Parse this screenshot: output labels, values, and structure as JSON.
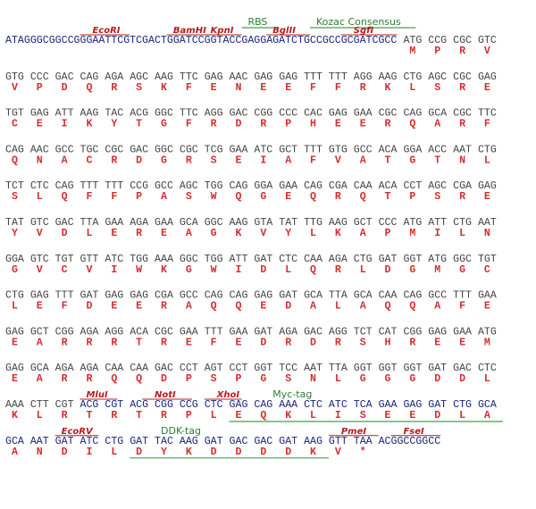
{
  "rows": [
    {
      "segments": [
        {
          "color": "#1a237e",
          "seq": "ATAGGGCGGCCGGGAATTCGTCGACTGGATCCGGTACCGAGGAGATCTGCCGCCGCGATCGCC"
        },
        {
          "color": "#444444",
          "codons": [
            "ATG",
            "CCG",
            "CGC",
            "GTC"
          ]
        }
      ],
      "aa": [
        "M",
        "P",
        "R",
        "V"
      ],
      "annotations": [
        {
          "label": "RBS",
          "color": "#2e7d32"
        },
        {
          "label": "Kozac Consensus",
          "color": "#2e7d32"
        },
        {
          "label": "EcoRI",
          "color": "#b71c1c"
        },
        {
          "label": "BamHI",
          "color": "#b71c1c"
        },
        {
          "label": "KpnI",
          "color": "#b71c1c"
        },
        {
          "label": "BglII",
          "color": "#b71c1c"
        },
        {
          "label": "SgfI",
          "color": "#b71c1c"
        }
      ]
    },
    {
      "segments": [
        {
          "color": "#444444",
          "codons": [
            "GTG",
            "CCC",
            "GAC",
            "CAG",
            "AGA",
            "AGC",
            "AAG",
            "TTC",
            "GAG",
            "AAC",
            "GAG",
            "GAG",
            "TTT",
            "TTT",
            "AGG",
            "AAG",
            "CTG",
            "AGC",
            "CGC",
            "GAG"
          ]
        }
      ],
      "aa": [
        "V",
        "P",
        "D",
        "Q",
        "R",
        "S",
        "K",
        "F",
        "E",
        "N",
        "E",
        "E",
        "F",
        "F",
        "R",
        "K",
        "L",
        "S",
        "R",
        "E"
      ]
    },
    {
      "segments": [
        {
          "color": "#444444",
          "codons": [
            "TGT",
            "GAG",
            "ATT",
            "AAG",
            "TAC",
            "ACG",
            "GGC",
            "TTC",
            "AGG",
            "GAC",
            "CGG",
            "CCC",
            "CAC",
            "GAG",
            "GAA",
            "CGC",
            "CAG",
            "GCA",
            "CGC",
            "TTC"
          ]
        }
      ],
      "aa": [
        "C",
        "E",
        "I",
        "K",
        "Y",
        "T",
        "G",
        "F",
        "R",
        "D",
        "R",
        "P",
        "H",
        "E",
        "E",
        "R",
        "Q",
        "A",
        "R",
        "F"
      ]
    },
    {
      "segments": [
        {
          "color": "#444444",
          "codons": [
            "CAG",
            "AAC",
            "GCC",
            "TGC",
            "CGC",
            "GAC",
            "GGC",
            "CGC",
            "TCG",
            "GAA",
            "ATC",
            "GCT",
            "TTT",
            "GTG",
            "GCC",
            "ACA",
            "GGA",
            "ACC",
            "AAT",
            "CTG"
          ]
        }
      ],
      "aa": [
        "Q",
        "N",
        "A",
        "C",
        "R",
        "D",
        "G",
        "R",
        "S",
        "E",
        "I",
        "A",
        "F",
        "V",
        "A",
        "T",
        "G",
        "T",
        "N",
        "L"
      ]
    },
    {
      "segments": [
        {
          "color": "#444444",
          "codons": [
            "TCT",
            "CTC",
            "CAG",
            "TTT",
            "TTT",
            "CCG",
            "GCC",
            "AGC",
            "TGG",
            "CAG",
            "GGA",
            "GAA",
            "CAG",
            "CGA",
            "CAA",
            "ACA",
            "CCT",
            "AGC",
            "CGA",
            "GAG"
          ]
        }
      ],
      "aa": [
        "S",
        "L",
        "Q",
        "F",
        "F",
        "P",
        "A",
        "S",
        "W",
        "Q",
        "G",
        "E",
        "Q",
        "R",
        "Q",
        "T",
        "P",
        "S",
        "R",
        "E"
      ]
    },
    {
      "segments": [
        {
          "color": "#444444",
          "codons": [
            "TAT",
            "GTC",
            "GAC",
            "TTA",
            "GAA",
            "AGA",
            "GAA",
            "GCA",
            "GGC",
            "AAG",
            "GTA",
            "TAT",
            "TTG",
            "AAG",
            "GCT",
            "CCC",
            "ATG",
            "ATT",
            "CTG",
            "AAT"
          ]
        }
      ],
      "aa": [
        "Y",
        "V",
        "D",
        "L",
        "E",
        "R",
        "E",
        "A",
        "G",
        "K",
        "V",
        "Y",
        "L",
        "K",
        "A",
        "P",
        "M",
        "I",
        "L",
        "N"
      ]
    },
    {
      "segments": [
        {
          "color": "#444444",
          "codons": [
            "GGA",
            "GTC",
            "TGT",
            "GTT",
            "ATC",
            "TGG",
            "AAA",
            "GGC",
            "TGG",
            "ATT",
            "GAT",
            "CTC",
            "CAA",
            "AGA",
            "CTG",
            "GAT",
            "GGT",
            "ATG",
            "GGC",
            "TGT"
          ]
        }
      ],
      "aa": [
        "G",
        "V",
        "C",
        "V",
        "I",
        "W",
        "K",
        "G",
        "W",
        "I",
        "D",
        "L",
        "Q",
        "R",
        "L",
        "D",
        "G",
        "M",
        "G",
        "C"
      ]
    },
    {
      "segments": [
        {
          "color": "#444444",
          "codons": [
            "CTG",
            "GAG",
            "TTT",
            "GAT",
            "GAG",
            "GAG",
            "CGA",
            "GCC",
            "CAG",
            "CAG",
            "GAG",
            "GAT",
            "GCA",
            "TTA",
            "GCA",
            "CAA",
            "CAG",
            "GCC",
            "TTT",
            "GAA"
          ]
        }
      ],
      "aa": [
        "L",
        "E",
        "F",
        "D",
        "E",
        "E",
        "R",
        "A",
        "Q",
        "Q",
        "E",
        "D",
        "A",
        "L",
        "A",
        "Q",
        "Q",
        "A",
        "F",
        "E"
      ]
    },
    {
      "segments": [
        {
          "color": "#444444",
          "codons": [
            "GAG",
            "GCT",
            "CGG",
            "AGA",
            "AGG",
            "ACA",
            "CGC",
            "GAA",
            "TTT",
            "GAA",
            "GAT",
            "AGA",
            "GAC",
            "AGG",
            "TCT",
            "CAT",
            "CGG",
            "GAG",
            "GAA",
            "ATG"
          ]
        }
      ],
      "aa": [
        "E",
        "A",
        "R",
        "R",
        "R",
        "T",
        "R",
        "E",
        "F",
        "E",
        "D",
        "R",
        "D",
        "R",
        "S",
        "H",
        "R",
        "E",
        "E",
        "M"
      ]
    },
    {
      "segments": [
        {
          "color": "#444444",
          "codons": [
            "GAG",
            "GCA",
            "AGA",
            "AGA",
            "CAA",
            "CAA",
            "GAC",
            "CCT",
            "AGT",
            "CCT",
            "GGT",
            "TCC",
            "AAT",
            "TTA",
            "GGT",
            "GGT",
            "GGT",
            "GAT",
            "GAC",
            "CTC"
          ]
        }
      ],
      "aa": [
        "E",
        "A",
        "R",
        "R",
        "Q",
        "Q",
        "D",
        "P",
        "S",
        "P",
        "G",
        "S",
        "N",
        "L",
        "G",
        "G",
        "G",
        "D",
        "D",
        "L"
      ]
    },
    {
      "segments": [
        {
          "color": "#444444",
          "codons": [
            "AAA",
            "CTT",
            "CGT"
          ]
        },
        {
          "color": "#1a237e",
          "codons": [
            "ACG",
            "CGT",
            "ACG",
            "CGG",
            "CCG",
            "CTC",
            "GAG",
            "CAG",
            "AAA",
            "CTC",
            "ATC",
            "TCA",
            "GAA",
            "GAG",
            "GAT",
            "CTG",
            "GCA"
          ]
        }
      ],
      "aa": [
        "K",
        "L",
        "R",
        "T",
        "R",
        "T",
        "R",
        "P",
        "L",
        "E",
        "Q",
        "K",
        "L",
        "I",
        "S",
        "E",
        "E",
        "D",
        "L",
        "A"
      ],
      "annotations": [
        {
          "label": "MluI",
          "color": "#b71c1c"
        },
        {
          "label": "NotI",
          "color": "#b71c1c"
        },
        {
          "label": "XhoI",
          "color": "#b71c1c"
        },
        {
          "label": "Myc-tag",
          "color": "#2e7d32"
        }
      ]
    },
    {
      "segments": [
        {
          "color": "#1a237e",
          "codons": [
            "GCA",
            "AAT",
            "GAT",
            "ATC",
            "CTG",
            "GAT",
            "TAC",
            "AAG",
            "GAT",
            "GAC",
            "GAC",
            "GAT",
            "AAG",
            "GTT",
            "TAA"
          ]
        },
        {
          "color": "#1a237e",
          "seq": "ACGGCCGGCC"
        }
      ],
      "aa": [
        "A",
        "N",
        "D",
        "I",
        "L",
        "D",
        "Y",
        "K",
        "D",
        "D",
        "D",
        "D",
        "K",
        "V",
        "*"
      ],
      "annotations": [
        {
          "label": "EcoRV",
          "color": "#b71c1c"
        },
        {
          "label": "DDK-tag",
          "color": "#2e7d32"
        },
        {
          "label": "PmeI",
          "color": "#b71c1c"
        },
        {
          "label": "FseI",
          "color": "#b71c1c"
        }
      ]
    }
  ]
}
